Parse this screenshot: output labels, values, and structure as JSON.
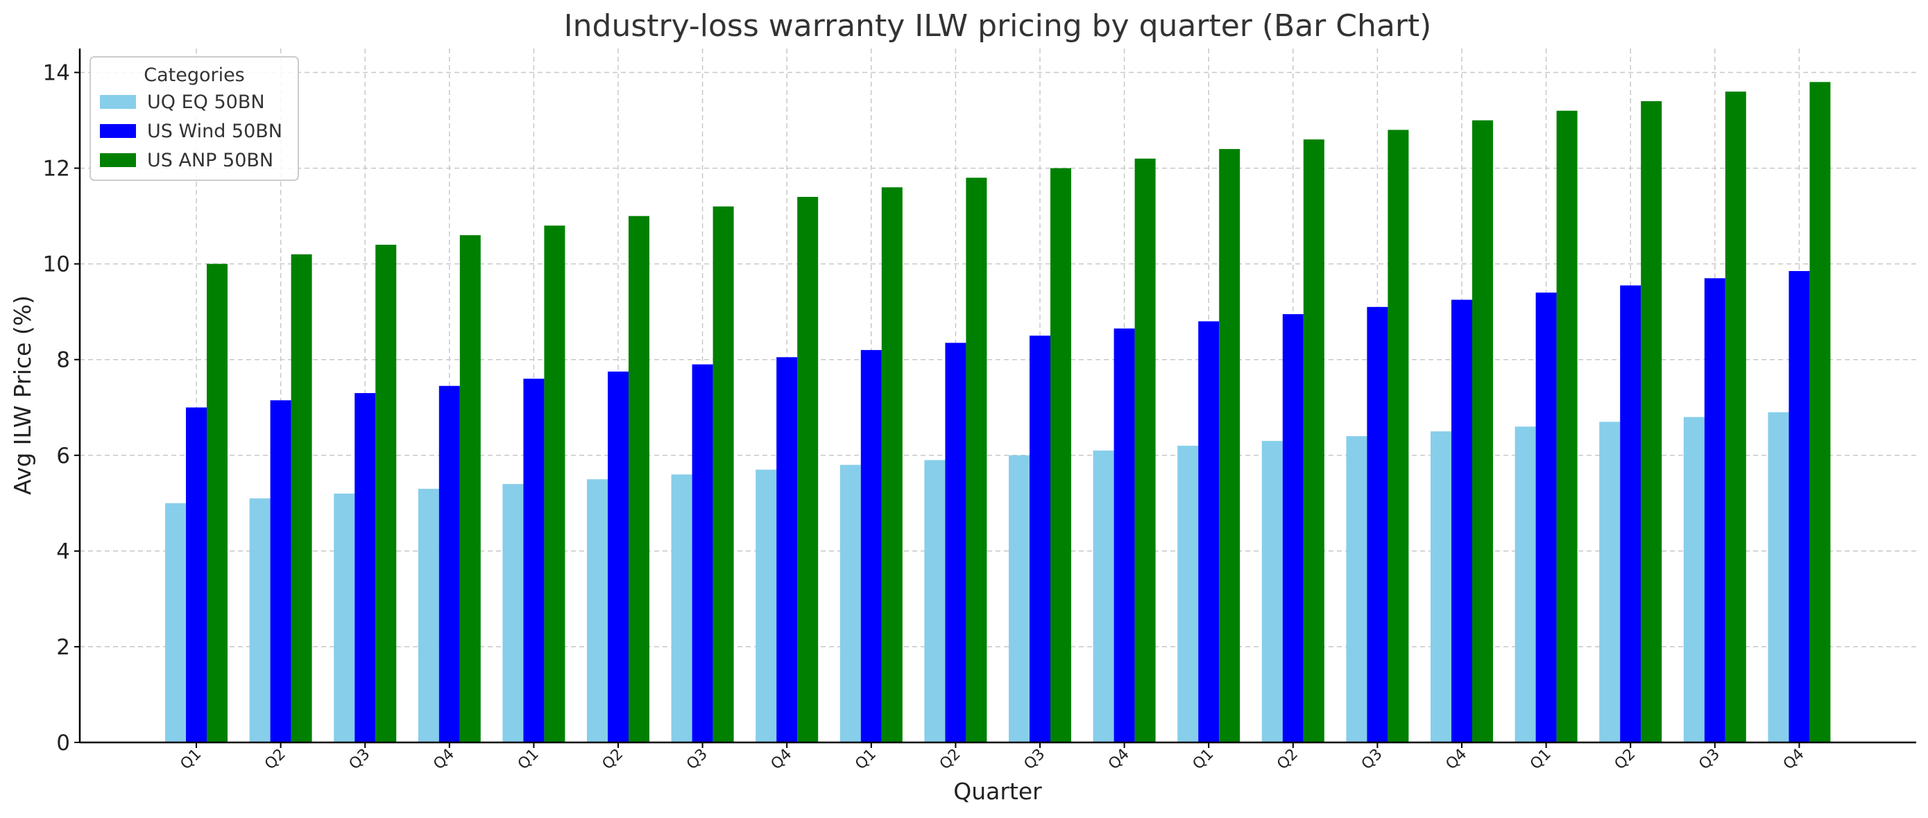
{
  "chart_data": {
    "type": "bar",
    "title": "Industry-loss warranty ILW pricing by quarter (Bar Chart)",
    "xlabel": "Quarter",
    "ylabel": "Avg ILW Price (%)",
    "ylim": [
      0,
      14.5
    ],
    "yticks": [
      0,
      2,
      4,
      6,
      8,
      10,
      12,
      14
    ],
    "grid": true,
    "legend": {
      "title": "Categories",
      "placement": "top-left"
    },
    "categories": [
      "Q1",
      "Q2",
      "Q3",
      "Q4",
      "Q1",
      "Q2",
      "Q3",
      "Q4",
      "Q1",
      "Q2",
      "Q3",
      "Q4",
      "Q1",
      "Q2",
      "Q3",
      "Q4",
      "Q1",
      "Q2",
      "Q3",
      "Q4"
    ],
    "series": [
      {
        "name": "UQ EQ 50BN",
        "color": "#87ceeb",
        "values": [
          5.0,
          5.1,
          5.2,
          5.3,
          5.4,
          5.5,
          5.6,
          5.7,
          5.8,
          5.9,
          6.0,
          6.1,
          6.2,
          6.3,
          6.4,
          6.5,
          6.6,
          6.7,
          6.8,
          6.9
        ]
      },
      {
        "name": "US Wind 50BN",
        "color": "#0000ff",
        "values": [
          7.0,
          7.15,
          7.3,
          7.45,
          7.6,
          7.75,
          7.9,
          8.05,
          8.2,
          8.35,
          8.5,
          8.65,
          8.8,
          8.95,
          9.1,
          9.25,
          9.4,
          9.55,
          9.7,
          9.85
        ]
      },
      {
        "name": "US ANP 50BN",
        "color": "#008000",
        "values": [
          10.0,
          10.2,
          10.4,
          10.6,
          10.8,
          11.0,
          11.2,
          11.4,
          11.6,
          11.8,
          12.0,
          12.2,
          12.4,
          12.6,
          12.8,
          13.0,
          13.2,
          13.4,
          13.6,
          13.8
        ]
      }
    ]
  }
}
